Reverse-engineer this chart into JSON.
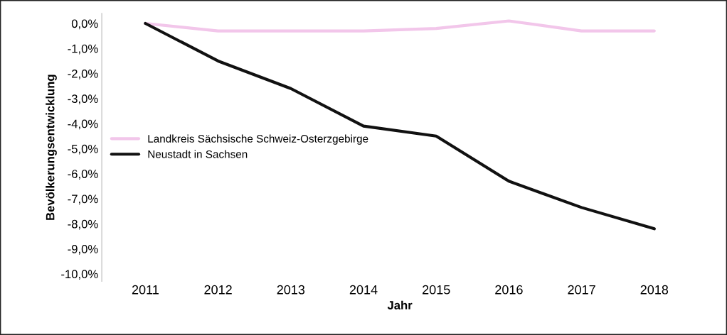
{
  "chart_data": {
    "type": "line",
    "xlabel": "Jahr",
    "ylabel": "Bevölkerungsentwicklung",
    "categories": [
      "2011",
      "2012",
      "2013",
      "2014",
      "2015",
      "2016",
      "2017",
      "2018"
    ],
    "series": [
      {
        "name": "Landkreis Sächsische Schweiz-Osterzgebirge",
        "color": "#f2c6ea",
        "values": [
          0.0,
          -0.3,
          -0.3,
          -0.3,
          -0.2,
          0.1,
          -0.3,
          -0.3
        ]
      },
      {
        "name": "Neustadt in Sachsen",
        "color": "#111111",
        "values": [
          0.0,
          -1.5,
          -2.6,
          -4.1,
          -4.5,
          -6.3,
          -7.35,
          -8.2
        ]
      }
    ],
    "ylim": [
      -10.3,
      0.4
    ],
    "yticks": [
      {
        "value": 0,
        "label": "0,0%"
      },
      {
        "value": -1,
        "label": "-1,0%"
      },
      {
        "value": -2,
        "label": "-2,0%"
      },
      {
        "value": -3,
        "label": "-3,0%"
      },
      {
        "value": -4,
        "label": "-4,0%"
      },
      {
        "value": -5,
        "label": "-5,0%"
      },
      {
        "value": -6,
        "label": "-6,0%"
      },
      {
        "value": -7,
        "label": "-7,0%"
      },
      {
        "value": -8,
        "label": "-8,0%"
      },
      {
        "value": -9,
        "label": "-9,0%"
      },
      {
        "value": -10,
        "label": "-10,0%"
      }
    ],
    "grid": false,
    "legend": "center left",
    "marker": "none",
    "line_style": "solid"
  }
}
